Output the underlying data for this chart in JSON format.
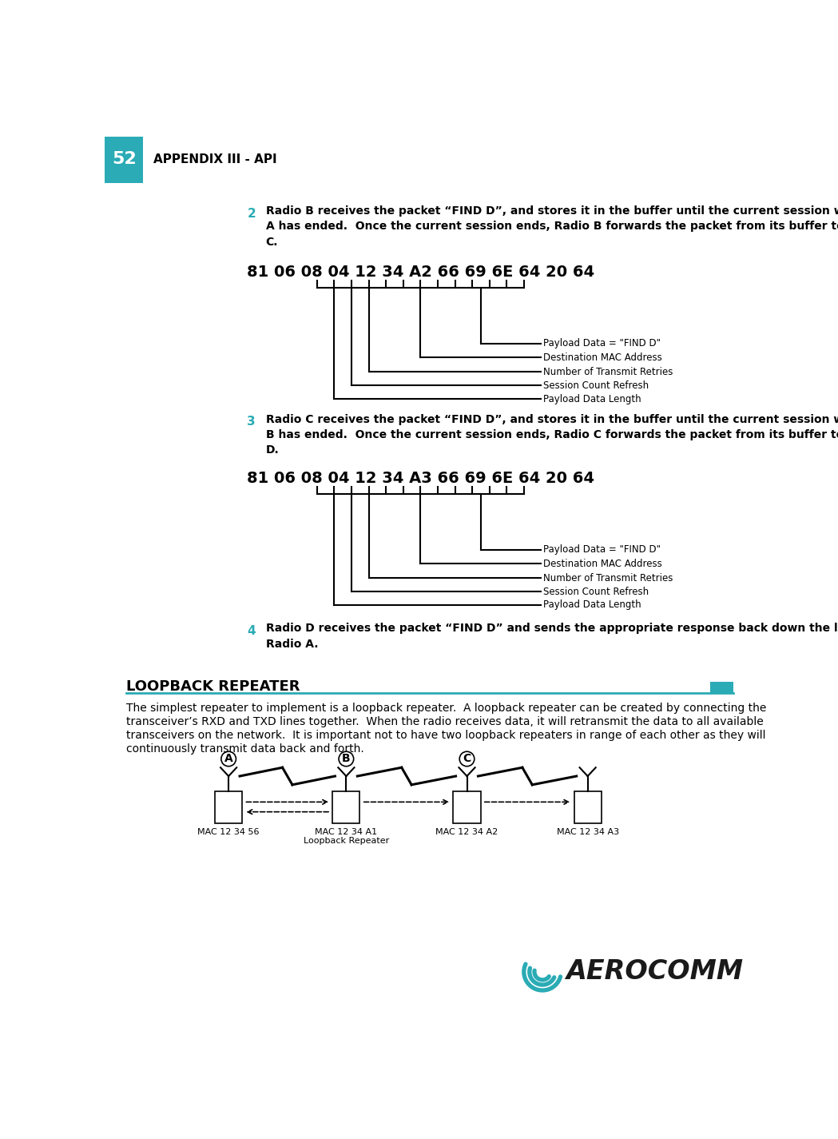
{
  "page_num": "52",
  "header_text": "APPENDIX III - API",
  "header_bg": "#2AABB5",
  "bg_color": "#FFFFFF",
  "section2_num": "2",
  "section2_text1": "Radio B receives the packet “FIND D”, and stores it in the buffer until the current session with Radio",
  "section2_text2": "A has ended.  Once the current session ends, Radio B forwards the packet from its buffer to Radio",
  "section2_text3": "C.",
  "diagram1_hex": "81 06 08 04 12 34 A2 66 69 6E 64 20 64",
  "diagram1_labels": [
    "Payload Data = \"FIND D\"",
    "Destination MAC Address",
    "Number of Transmit Retries",
    "Session Count Refresh",
    "Payload Data Length"
  ],
  "section3_num": "3",
  "section3_text1": "Radio C receives the packet “FIND D”, and stores it in the buffer until the current session with Radio",
  "section3_text2": "B has ended.  Once the current session ends, Radio C forwards the packet from its buffer to Radio",
  "section3_text3": "D.",
  "diagram2_hex": "81 06 08 04 12 34 A3 66 69 6E 64 20 64",
  "diagram2_labels": [
    "Payload Data = \"FIND D\"",
    "Destination MAC Address",
    "Number of Transmit Retries",
    "Session Count Refresh",
    "Payload Data Length"
  ],
  "section4_num": "4",
  "section4_text1": "Radio D receives the packet “FIND D” and sends the appropriate response back down the line to",
  "section4_text2": "Radio A.",
  "loopback_title": "LOOPBACK REPEATER",
  "loopback_body1": "The simplest repeater to implement is a loopback repeater.  A loopback repeater can be created by connecting the",
  "loopback_body2": "transceiver’s RXD and TXD lines together.  When the radio receives data, it will retransmit the data to all available",
  "loopback_body3": "transceivers on the network.  It is important not to have two loopback repeaters in range of each other as they will",
  "loopback_body4": "continuously transmit data back and forth.",
  "radio_labels": [
    "A",
    "B",
    "C",
    ""
  ],
  "mac_labels": [
    "MAC 12 34 56",
    "MAC 12 34 A1\nLoopback Repeater",
    "MAC 12 34 A2",
    "MAC 12 34 A3"
  ],
  "aerocomm_text": "AEROCOMM",
  "aerocomm_color": "#1A1A1A",
  "aerocomm_swirl_color": "#2AABB5"
}
